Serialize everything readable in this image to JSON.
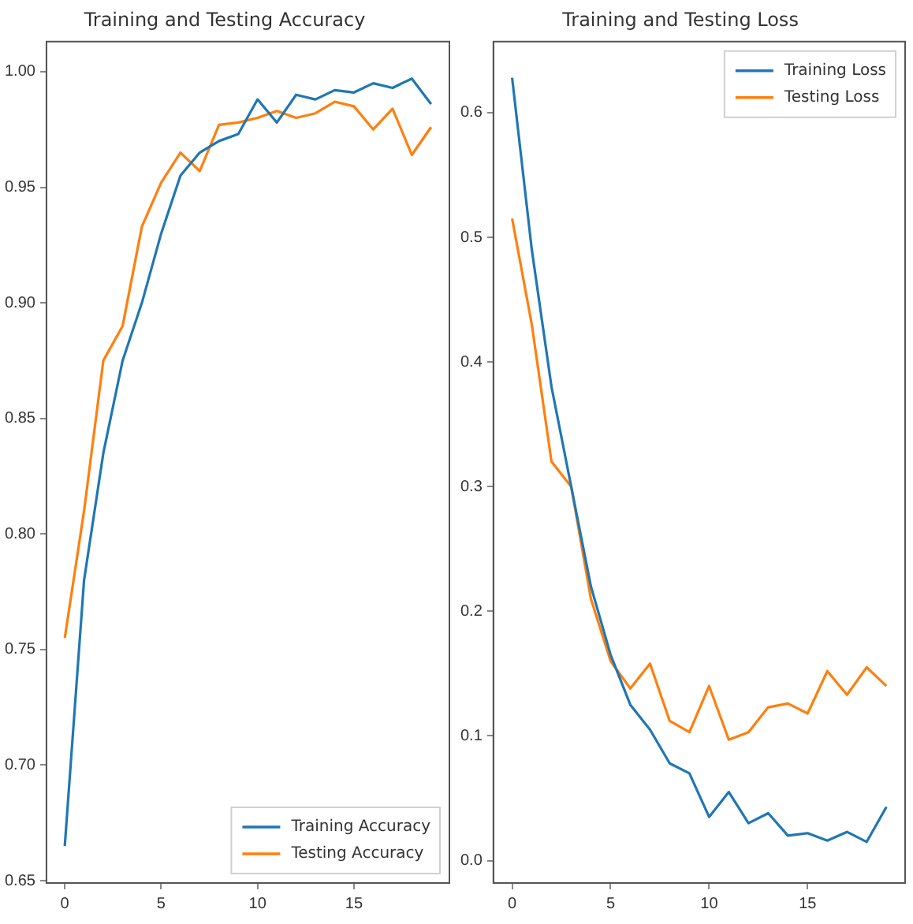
{
  "chart_data": [
    {
      "type": "line",
      "title": "Training and Testing Accuracy",
      "x": [
        0,
        1,
        2,
        3,
        4,
        5,
        6,
        7,
        8,
        9,
        10,
        11,
        12,
        13,
        14,
        15,
        16,
        17,
        18,
        19
      ],
      "series": [
        {
          "name": "Training Accuracy",
          "color": "#1f77b4",
          "values": [
            0.665,
            0.78,
            0.835,
            0.875,
            0.9,
            0.93,
            0.955,
            0.965,
            0.97,
            0.973,
            0.988,
            0.978,
            0.99,
            0.988,
            0.992,
            0.991,
            0.995,
            0.993,
            0.997,
            0.986
          ]
        },
        {
          "name": "Testing Accuracy",
          "color": "#ff7f0e",
          "values": [
            0.755,
            0.81,
            0.875,
            0.89,
            0.933,
            0.952,
            0.965,
            0.957,
            0.977,
            0.978,
            0.98,
            0.983,
            0.98,
            0.982,
            0.987,
            0.985,
            0.975,
            0.984,
            0.964,
            0.976
          ]
        }
      ],
      "xlim": [
        -0.95,
        19.95
      ],
      "xticks": [
        0,
        5,
        10,
        15
      ],
      "ylim": [
        0.649,
        1.013
      ],
      "yticks": [
        {
          "value": 0.65,
          "label": "0.65"
        },
        {
          "value": 0.7,
          "label": "0.70"
        },
        {
          "value": 0.75,
          "label": "0.75"
        },
        {
          "value": 0.8,
          "label": "0.80"
        },
        {
          "value": 0.85,
          "label": "0.85"
        },
        {
          "value": 0.9,
          "label": "0.90"
        },
        {
          "value": 0.95,
          "label": "0.95"
        },
        {
          "value": 1,
          "label": "1.00"
        }
      ],
      "grid": false,
      "legend": "bottom right",
      "marker": "none",
      "line_style": "solid"
    },
    {
      "type": "line",
      "title": "Training and Testing Loss",
      "x": [
        0,
        1,
        2,
        3,
        4,
        5,
        6,
        7,
        8,
        9,
        10,
        11,
        12,
        13,
        14,
        15,
        16,
        17,
        18,
        19
      ],
      "series": [
        {
          "name": "Training Loss",
          "color": "#1f77b4",
          "values": [
            0.628,
            0.49,
            0.38,
            0.3,
            0.22,
            0.165,
            0.125,
            0.105,
            0.078,
            0.07,
            0.035,
            0.055,
            0.03,
            0.038,
            0.02,
            0.022,
            0.016,
            0.023,
            0.015,
            0.043
          ]
        },
        {
          "name": "Testing Loss",
          "color": "#ff7f0e",
          "values": [
            0.515,
            0.43,
            0.32,
            0.3,
            0.21,
            0.16,
            0.138,
            0.158,
            0.112,
            0.103,
            0.14,
            0.097,
            0.103,
            0.123,
            0.126,
            0.118,
            0.152,
            0.133,
            0.155,
            0.14
          ]
        }
      ],
      "xlim": [
        -0.95,
        19.95
      ],
      "xticks": [
        0,
        5,
        10,
        15
      ],
      "ylim": [
        -0.018,
        0.657
      ],
      "yticks": [
        {
          "value": 0,
          "label": "0.0"
        },
        {
          "value": 0.1,
          "label": "0.1"
        },
        {
          "value": 0.2,
          "label": "0.2"
        },
        {
          "value": 0.3,
          "label": "0.3"
        },
        {
          "value": 0.4,
          "label": "0.4"
        },
        {
          "value": 0.5,
          "label": "0.5"
        },
        {
          "value": 0.6,
          "label": "0.6"
        }
      ],
      "grid": false,
      "legend": "top right",
      "marker": "none",
      "line_style": "solid"
    }
  ]
}
